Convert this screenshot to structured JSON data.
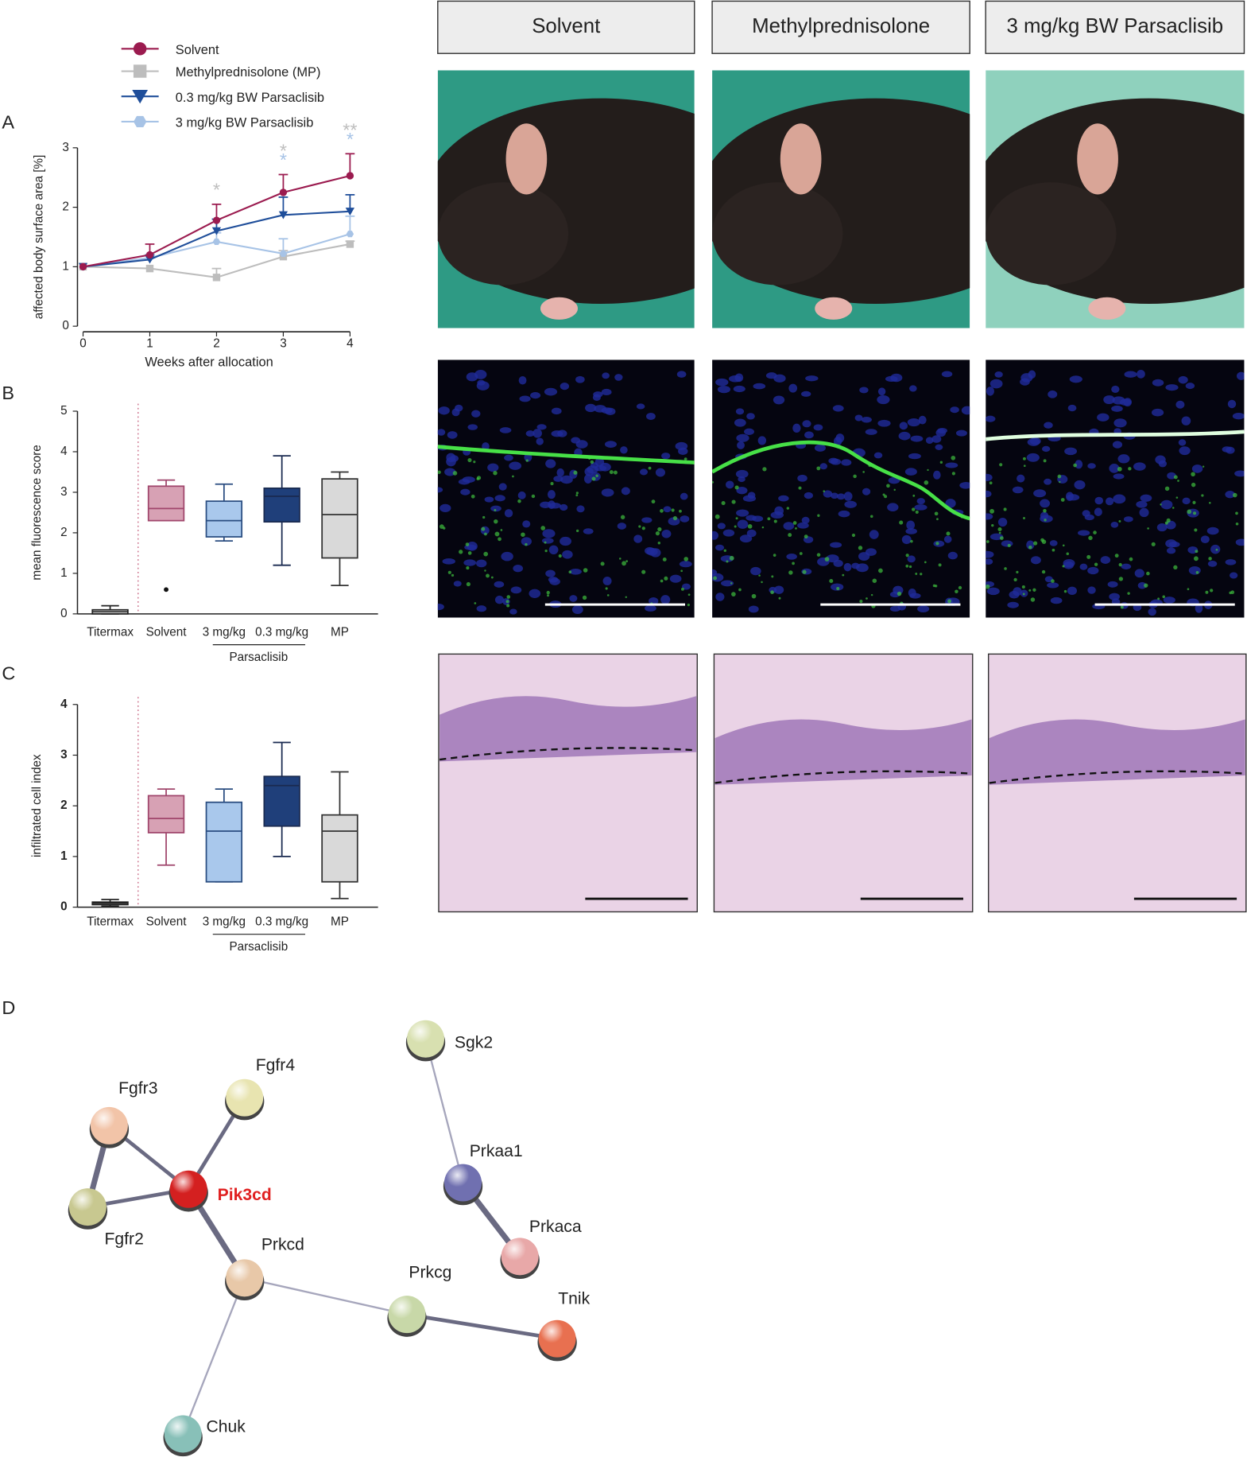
{
  "chart_data": [
    {
      "type": "line",
      "panel": "A",
      "y_label": "affected body surface area [%]",
      "x_label": "Weeks after allocation",
      "x": [
        0,
        1,
        2,
        3,
        4
      ],
      "xlim": [
        0,
        4
      ],
      "xticks": [
        0,
        1,
        2,
        3,
        4
      ],
      "ylim": [
        0,
        3
      ],
      "yticks": [
        0,
        1,
        2,
        3
      ],
      "series": [
        {
          "name": "Solvent",
          "color": "#9b1b4f",
          "marker": "circle",
          "values": [
            1,
            1.2,
            1.78,
            2.25,
            2.53
          ],
          "errors": [
            0,
            0.18,
            0.27,
            0.3,
            0.37
          ]
        },
        {
          "name": "Methylprednisolone (MP)",
          "color": "#bdbdbd",
          "marker": "square",
          "values": [
            1,
            0.97,
            0.82,
            1.17,
            1.38
          ],
          "errors": [
            0,
            0,
            0.15,
            0.1,
            0.05
          ]
        },
        {
          "name": "0.3 mg/kg BW Parsaclisib",
          "color": "#1f4e9a",
          "marker": "triangle",
          "values": [
            1,
            1.12,
            1.6,
            1.87,
            1.93
          ],
          "errors": [
            0,
            0.08,
            0.2,
            0.3,
            0.28
          ]
        },
        {
          "name": "3 mg/kg BW Parsaclisib",
          "color": "#a7c3e6",
          "marker": "hexagon",
          "values": [
            1,
            1.15,
            1.42,
            1.22,
            1.55
          ],
          "errors": [
            0,
            0,
            0.15,
            0.25,
            0.3
          ]
        }
      ],
      "annotations": [
        {
          "text": "*",
          "x": 2,
          "color": "#bdbdbd"
        },
        {
          "text": "*",
          "x": 3,
          "color": "#a7c3e6"
        },
        {
          "text": "*",
          "x": 3,
          "color": "#bdbdbd"
        },
        {
          "text": "*",
          "x": 4,
          "color": "#a7c3e6"
        },
        {
          "text": "**",
          "x": 4,
          "color": "#bdbdbd"
        }
      ]
    },
    {
      "type": "box",
      "panel": "B",
      "y_label": "mean fluorescence score",
      "categories": [
        "Titermax",
        "Solvent",
        "3 mg/kg",
        "0.3 mg/kg",
        "MP"
      ],
      "group_label": "Parsaclisib",
      "ylim": [
        0,
        5
      ],
      "yticks": [
        0,
        1,
        2,
        3,
        4,
        5
      ],
      "boxes": [
        {
          "min": 0,
          "q1": 0,
          "median": 0.05,
          "q3": 0.1,
          "max": 0.2
        },
        {
          "min": 2.3,
          "q1": 2.3,
          "median": 2.6,
          "q3": 3.15,
          "max": 3.3,
          "outliers": [
            0.6
          ]
        },
        {
          "min": 1.8,
          "q1": 1.9,
          "median": 2.3,
          "q3": 2.78,
          "max": 3.2
        },
        {
          "min": 1.2,
          "q1": 2.27,
          "median": 2.9,
          "q3": 3.1,
          "max": 3.9
        },
        {
          "min": 0.7,
          "q1": 1.38,
          "median": 2.45,
          "q3": 3.33,
          "max": 3.5
        }
      ],
      "fills": [
        "#ffffff",
        "#d7a1b4",
        "#a9c8ec",
        "#1f3f7a",
        "#d9d9d9"
      ],
      "strokes": [
        "#222222",
        "#a0466c",
        "#2a4d80",
        "#1a2a50",
        "#333333"
      ]
    },
    {
      "type": "box",
      "panel": "C",
      "y_label": "infiltrated cell index",
      "categories": [
        "Titermax",
        "Solvent",
        "3 mg/kg",
        "0.3 mg/kg",
        "MP"
      ],
      "group_label": "Parsaclisib",
      "ylim": [
        0,
        4
      ],
      "yticks": [
        0,
        1,
        2,
        3,
        4
      ],
      "boxes": [
        {
          "min": 0.02,
          "q1": 0.05,
          "median": 0.08,
          "q3": 0.1,
          "max": 0.15
        },
        {
          "min": 0.83,
          "q1": 1.47,
          "median": 1.75,
          "q3": 2.2,
          "max": 2.33
        },
        {
          "min": 0.5,
          "q1": 0.5,
          "median": 1.5,
          "q3": 2.07,
          "max": 2.33
        },
        {
          "min": 1.0,
          "q1": 1.6,
          "median": 2.4,
          "q3": 2.58,
          "max": 3.25
        },
        {
          "min": 0.17,
          "q1": 0.5,
          "median": 1.5,
          "q3": 1.82,
          "max": 2.67
        }
      ],
      "fills": [
        "#ffffff",
        "#d7a1b4",
        "#a9c8ec",
        "#1f3f7a",
        "#d9d9d9"
      ],
      "strokes": [
        "#222222",
        "#a0466c",
        "#2a4d80",
        "#1a2a50",
        "#333333"
      ]
    }
  ],
  "photos": {
    "columns": [
      "Solvent",
      "Methylprednisolone",
      "3 mg/kg BW Parsaclisib"
    ]
  },
  "network": {
    "panel": "D",
    "nodes": [
      {
        "label": "Sgk2"
      },
      {
        "label": "Fgfr4"
      },
      {
        "label": "Fgfr3"
      },
      {
        "label": "Pik3cd"
      },
      {
        "label": "Fgfr2"
      },
      {
        "label": "Prkcd"
      },
      {
        "label": "Prkaa1"
      },
      {
        "label": "Prkaca"
      },
      {
        "label": "Prkcg"
      },
      {
        "label": "Tnik"
      },
      {
        "label": "Chuk"
      }
    ]
  }
}
